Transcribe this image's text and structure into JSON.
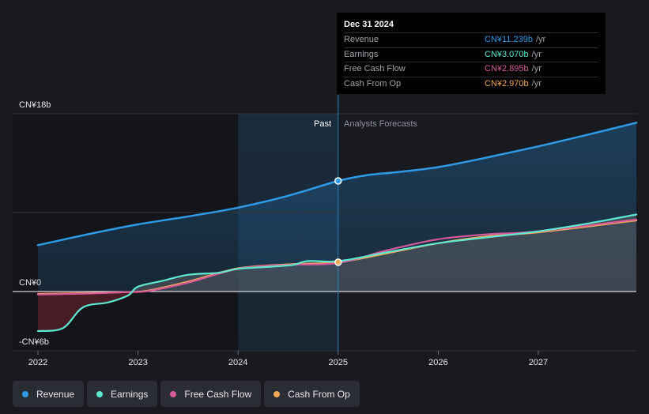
{
  "tooltip": {
    "date": "Dec 31 2024",
    "rows": [
      {
        "label": "Revenue",
        "value": "CN¥11.239b",
        "unit": "/yr",
        "color": "#2f9ae6"
      },
      {
        "label": "Earnings",
        "value": "CN¥3.070b",
        "unit": "/yr",
        "color": "#5ee8d0"
      },
      {
        "label": "Free Cash Flow",
        "value": "CN¥2.895b",
        "unit": "/yr",
        "color": "#d45a9a"
      },
      {
        "label": "Cash From Op",
        "value": "CN¥2.970b",
        "unit": "/yr",
        "color": "#f0a85a"
      }
    ]
  },
  "legend": [
    {
      "label": "Revenue",
      "color": "#2f9ae6"
    },
    {
      "label": "Earnings",
      "color": "#5ee8d0"
    },
    {
      "label": "Free Cash Flow",
      "color": "#d45a9a"
    },
    {
      "label": "Cash From Op",
      "color": "#f0a85a"
    }
  ],
  "chart_data": {
    "type": "line",
    "divider_labels": {
      "past": "Past",
      "forecast": "Analysts Forecasts"
    },
    "y_tick_labels": [
      "CN¥18b",
      "CN¥0",
      "-CN¥6b"
    ],
    "x_tick_labels": [
      "2022",
      "2023",
      "2024",
      "2025",
      "2026",
      "2027"
    ],
    "x_ticks": [
      2022,
      2023,
      2024,
      2025,
      2026,
      2027
    ],
    "xlim": [
      2021.75,
      2027.98
    ],
    "ylim": [
      -6,
      18
    ],
    "past_end": 2025.0,
    "shade_start": 2024.0,
    "highlight_x": 2025.0,
    "grid": true,
    "series": [
      {
        "name": "Revenue",
        "color": "#2f9ae6",
        "points": [
          [
            2022.0,
            4.7
          ],
          [
            2022.5,
            5.8
          ],
          [
            2023.0,
            6.8
          ],
          [
            2023.5,
            7.6
          ],
          [
            2024.0,
            8.5
          ],
          [
            2024.5,
            9.7
          ],
          [
            2025.0,
            11.2
          ],
          [
            2025.3,
            11.8
          ],
          [
            2025.6,
            12.1
          ],
          [
            2026.0,
            12.6
          ],
          [
            2026.5,
            13.6
          ],
          [
            2027.0,
            14.7
          ],
          [
            2027.5,
            15.9
          ],
          [
            2027.98,
            17.1
          ]
        ]
      },
      {
        "name": "Earnings",
        "color": "#5ee8d0",
        "points": [
          [
            2022.0,
            -4.0
          ],
          [
            2022.25,
            -3.7
          ],
          [
            2022.45,
            -1.6
          ],
          [
            2022.7,
            -1.1
          ],
          [
            2022.9,
            -0.4
          ],
          [
            2023.0,
            0.5
          ],
          [
            2023.25,
            1.1
          ],
          [
            2023.5,
            1.7
          ],
          [
            2023.8,
            1.9
          ],
          [
            2024.0,
            2.3
          ],
          [
            2024.3,
            2.5
          ],
          [
            2024.55,
            2.7
          ],
          [
            2024.7,
            3.1
          ],
          [
            2025.0,
            3.07
          ],
          [
            2025.5,
            4.0
          ],
          [
            2026.0,
            4.9
          ],
          [
            2026.5,
            5.5
          ],
          [
            2027.0,
            6.1
          ],
          [
            2027.5,
            6.9
          ],
          [
            2027.98,
            7.8
          ]
        ]
      },
      {
        "name": "Free Cash Flow",
        "color": "#d45a9a",
        "points": [
          [
            2022.0,
            -0.3
          ],
          [
            2022.5,
            -0.2
          ],
          [
            2022.9,
            -0.05
          ],
          [
            2023.1,
            0.05
          ],
          [
            2023.5,
            0.9
          ],
          [
            2024.0,
            2.3
          ],
          [
            2024.5,
            2.7
          ],
          [
            2025.0,
            2.9
          ],
          [
            2025.5,
            4.2
          ],
          [
            2026.0,
            5.3
          ],
          [
            2026.5,
            5.8
          ],
          [
            2027.0,
            6.1
          ],
          [
            2027.98,
            7.3
          ]
        ]
      },
      {
        "name": "Cash From Op",
        "color": "#f0a85a",
        "points": [
          [
            2022.0,
            -0.25
          ],
          [
            2022.5,
            -0.15
          ],
          [
            2022.9,
            -0.05
          ],
          [
            2023.1,
            0.1
          ],
          [
            2023.5,
            1.0
          ],
          [
            2024.0,
            2.35
          ],
          [
            2024.5,
            2.75
          ],
          [
            2025.0,
            2.97
          ],
          [
            2025.5,
            3.9
          ],
          [
            2026.0,
            4.9
          ],
          [
            2026.5,
            5.6
          ],
          [
            2027.0,
            6.0
          ],
          [
            2027.98,
            7.2
          ]
        ]
      }
    ]
  }
}
